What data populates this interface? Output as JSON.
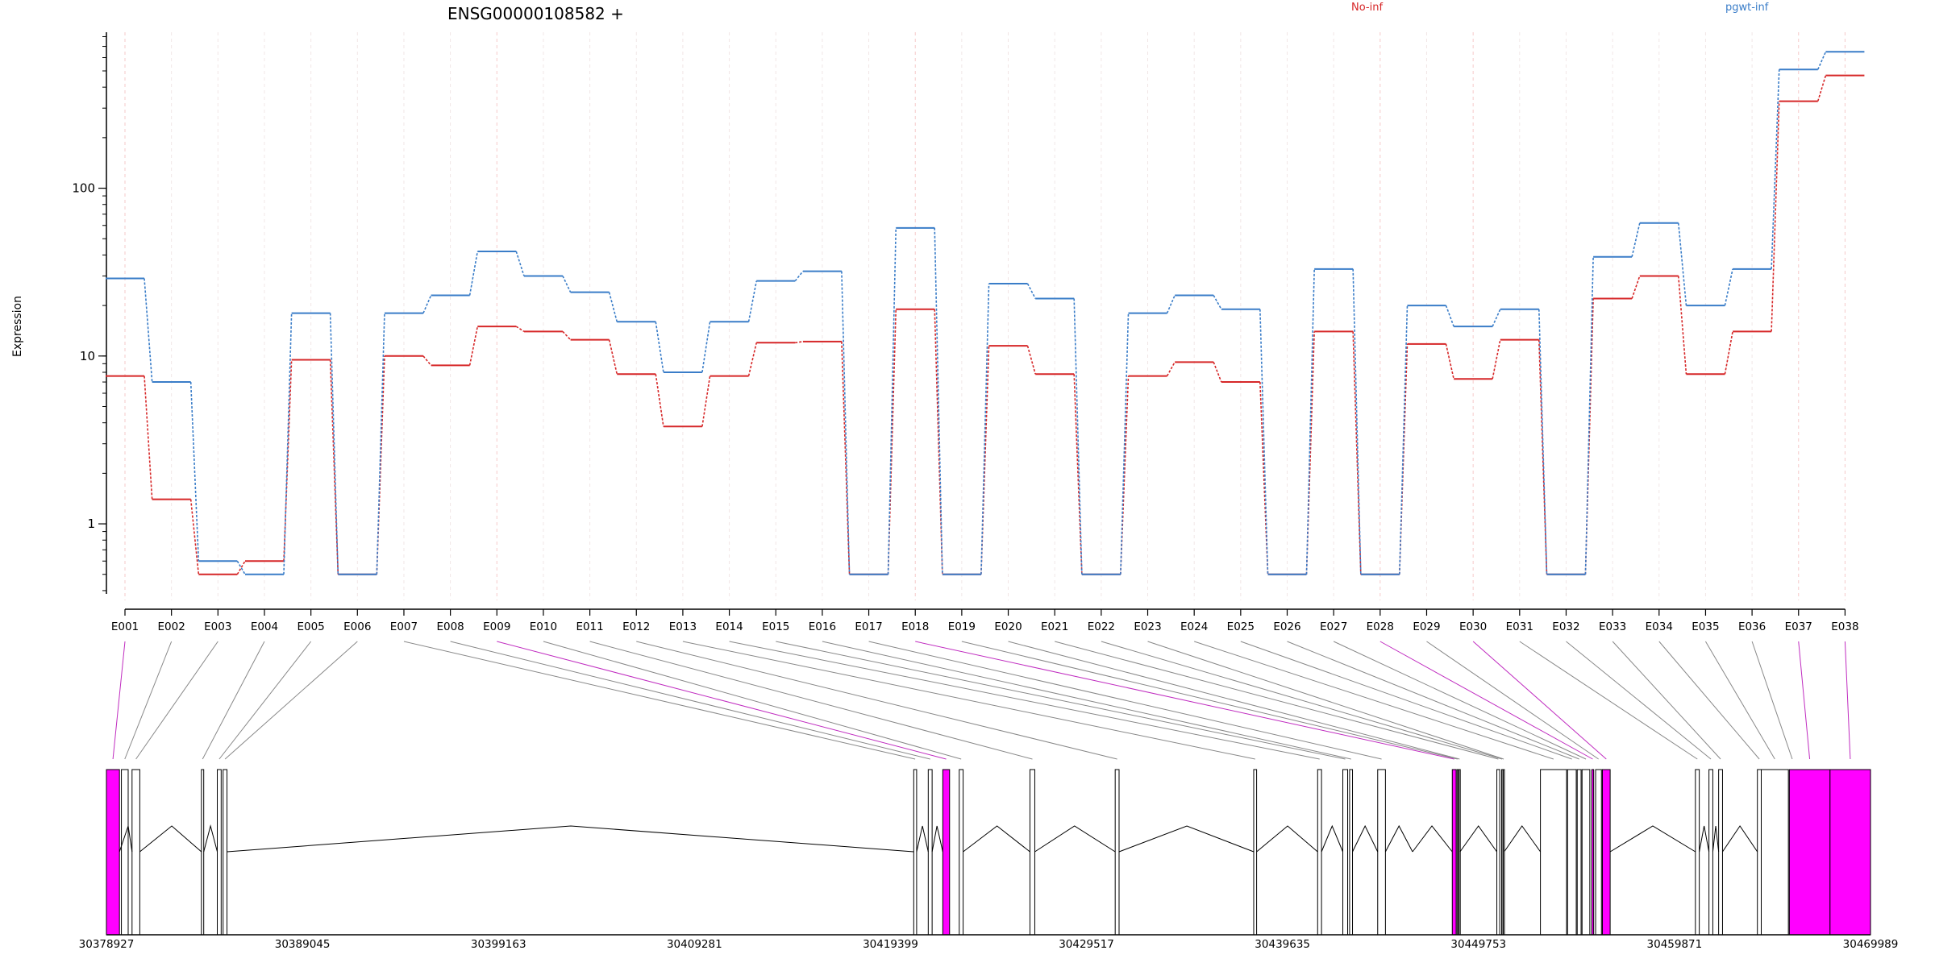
{
  "chart_data": {
    "type": "line",
    "title": "ENSG00000108582 +",
    "ylabel": "Expression",
    "xlabel": "",
    "yscale": "log",
    "ylim": [
      0.35,
      850
    ],
    "yticks": [
      {
        "value": 1,
        "label": "1"
      },
      {
        "value": 10,
        "label": "10"
      },
      {
        "value": 100,
        "label": "100"
      }
    ],
    "categories": [
      "E001",
      "E002",
      "E003",
      "E004",
      "E005",
      "E006",
      "E007",
      "E008",
      "E009",
      "E010",
      "E011",
      "E012",
      "E013",
      "E014",
      "E015",
      "E016",
      "E017",
      "E018",
      "E019",
      "E020",
      "E021",
      "E022",
      "E023",
      "E024",
      "E025",
      "E026",
      "E027",
      "E028",
      "E029",
      "E030",
      "E031",
      "E032",
      "E033",
      "E034",
      "E035",
      "E036",
      "E037",
      "E038"
    ],
    "series": [
      {
        "name": "No-inf",
        "color": "#d62728",
        "values": [
          7.6,
          1.4,
          0.5,
          0.6,
          9.5,
          0.5,
          10,
          8.8,
          15,
          14,
          12.5,
          7.8,
          3.8,
          7.6,
          12,
          12.2,
          0.5,
          19,
          0.5,
          11.5,
          7.8,
          0.5,
          7.6,
          9.2,
          7,
          0.5,
          14,
          0.5,
          11.8,
          7.3,
          12.5,
          0.5,
          22,
          30,
          7.8,
          14,
          330,
          470
        ]
      },
      {
        "name": "pgwt-inf",
        "color": "#3a7dc8",
        "values": [
          29,
          7,
          0.6,
          0.5,
          18,
          0.5,
          18,
          23,
          42,
          30,
          24,
          16,
          8,
          16,
          28,
          32,
          0.5,
          58,
          0.5,
          27,
          22,
          0.5,
          18,
          23,
          19,
          0.5,
          33,
          0.5,
          20,
          15,
          19,
          0.5,
          39,
          62,
          20,
          33,
          510,
          650
        ]
      }
    ],
    "highlighted_exons": [
      "E001",
      "E009",
      "E018",
      "E028",
      "E030",
      "E037",
      "E038"
    ],
    "highlight_color": "#ff00ff",
    "genome": {
      "start": 30378927,
      "end": 30469989,
      "ticks": [
        "30378927",
        "30389045",
        "30399163",
        "30409281",
        "30419399",
        "30429517",
        "30439635",
        "30449753",
        "30459871",
        "30469989"
      ],
      "exon_coords": [
        [
          30378927,
          30379600
        ],
        [
          30379700,
          30380050
        ],
        [
          30380250,
          30380650
        ],
        [
          30383830,
          30383950
        ],
        [
          30384650,
          30384850
        ],
        [
          30384950,
          30385150
        ],
        [
          30420600,
          30420750
        ],
        [
          30421350,
          30421550
        ],
        [
          30422100,
          30422450
        ],
        [
          30422950,
          30423150
        ],
        [
          30426600,
          30426850
        ],
        [
          30431000,
          30431200
        ],
        [
          30438150,
          30438300
        ],
        [
          30441450,
          30441650
        ],
        [
          30442750,
          30443000
        ],
        [
          30443100,
          30443250
        ],
        [
          30444550,
          30444950
        ],
        [
          30448400,
          30448600
        ],
        [
          30448650,
          30448700
        ],
        [
          30448750,
          30448800
        ],
        [
          30450700,
          30450850
        ],
        [
          30450950,
          30451000
        ],
        [
          30451030,
          30451080
        ],
        [
          30452950,
          30454300
        ],
        [
          30454350,
          30454800
        ],
        [
          30454850,
          30455050
        ],
        [
          30455100,
          30455500
        ],
        [
          30455600,
          30455700
        ],
        [
          30455800,
          30456100
        ],
        [
          30456150,
          30456550
        ],
        [
          30460950,
          30461150
        ],
        [
          30461650,
          30461850
        ],
        [
          30462150,
          30462350
        ],
        [
          30464150,
          30464350
        ],
        [
          30464350,
          30465750
        ],
        [
          30465900,
          30466000
        ],
        [
          30465800,
          30467900
        ],
        [
          30467900,
          30469989
        ]
      ],
      "intron_peaks": [
        {
          "from": 30379600,
          "to": 30380250,
          "peak": 30380050
        },
        {
          "from": 30380650,
          "to": 30383830,
          "peak": 30382300
        },
        {
          "from": 30383950,
          "to": 30384650,
          "peak": 30384300
        },
        {
          "from": 30385150,
          "to": 30420600,
          "peak": 30402900
        },
        {
          "from": 30420750,
          "to": 30421350,
          "peak": 30421050
        },
        {
          "from": 30421550,
          "to": 30422100,
          "peak": 30421800
        },
        {
          "from": 30423150,
          "to": 30426600,
          "peak": 30424900
        },
        {
          "from": 30426850,
          "to": 30431000,
          "peak": 30428900
        },
        {
          "from": 30431200,
          "to": 30438150,
          "peak": 30434700
        },
        {
          "from": 30438300,
          "to": 30441450,
          "peak": 30439900
        },
        {
          "from": 30441650,
          "to": 30442750,
          "peak": 30442200
        },
        {
          "from": 30443250,
          "to": 30444550,
          "peak": 30443900
        },
        {
          "from": 30444950,
          "to": 30446350,
          "peak": 30445650
        },
        {
          "from": 30446350,
          "to": 30448400,
          "peak": 30447350
        },
        {
          "from": 30448800,
          "to": 30450700,
          "peak": 30449750
        },
        {
          "from": 30451080,
          "to": 30452950,
          "peak": 30452000
        },
        {
          "from": 30456550,
          "to": 30460950,
          "peak": 30458750
        },
        {
          "from": 30461150,
          "to": 30461650,
          "peak": 30461400
        },
        {
          "from": 30461850,
          "to": 30462150,
          "peak": 30462000
        },
        {
          "from": 30462350,
          "to": 30464150,
          "peak": 30463250
        }
      ]
    }
  }
}
